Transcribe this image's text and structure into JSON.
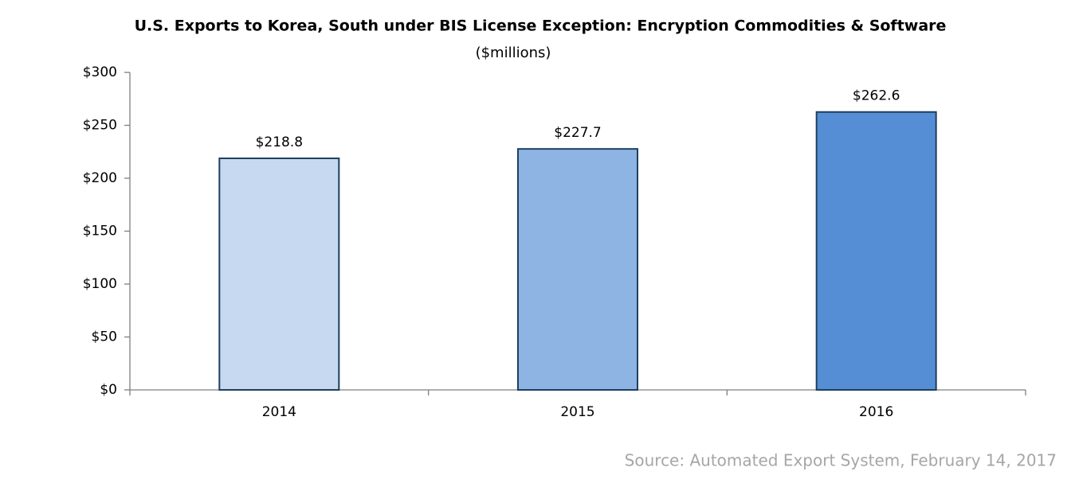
{
  "chart_data": {
    "type": "bar",
    "title": "U.S. Exports to Korea, South under BIS License Exception: Encryption Commodities & Software",
    "subtitle": "($millions)",
    "categories": [
      "2014",
      "2015",
      "2016"
    ],
    "values": [
      218.8,
      227.7,
      262.6
    ],
    "value_labels": [
      "$218.8",
      "$227.7",
      "$262.6"
    ],
    "colors": [
      "#c6d9f1",
      "#8eb4e3",
      "#558ed5"
    ],
    "edgecolor": "#1f3f5f",
    "ylim": [
      0,
      300
    ],
    "yticks": [
      {
        "value": 0,
        "label": "$0"
      },
      {
        "value": 50,
        "label": "$50"
      },
      {
        "value": 100,
        "label": "$100"
      },
      {
        "value": 150,
        "label": "$150"
      },
      {
        "value": 200,
        "label": "$200"
      },
      {
        "value": 250,
        "label": "$250"
      },
      {
        "value": 300,
        "label": "$300"
      }
    ],
    "grid": false,
    "source": "Source: Automated Export System, February 14, 2017"
  }
}
